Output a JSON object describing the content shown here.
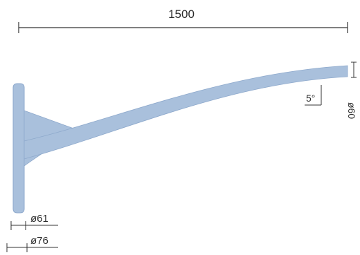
{
  "dimensions": {
    "length": "1500",
    "tip_angle": "5°",
    "tip_diameter": "ø60",
    "mount_inner_diameter": "ø61",
    "mount_outer_diameter": "ø76"
  },
  "colors": {
    "arm_fill": "#a9c0dc",
    "arm_edge": "#8ea9cc",
    "line": "#333333",
    "background": "#ffffff"
  }
}
